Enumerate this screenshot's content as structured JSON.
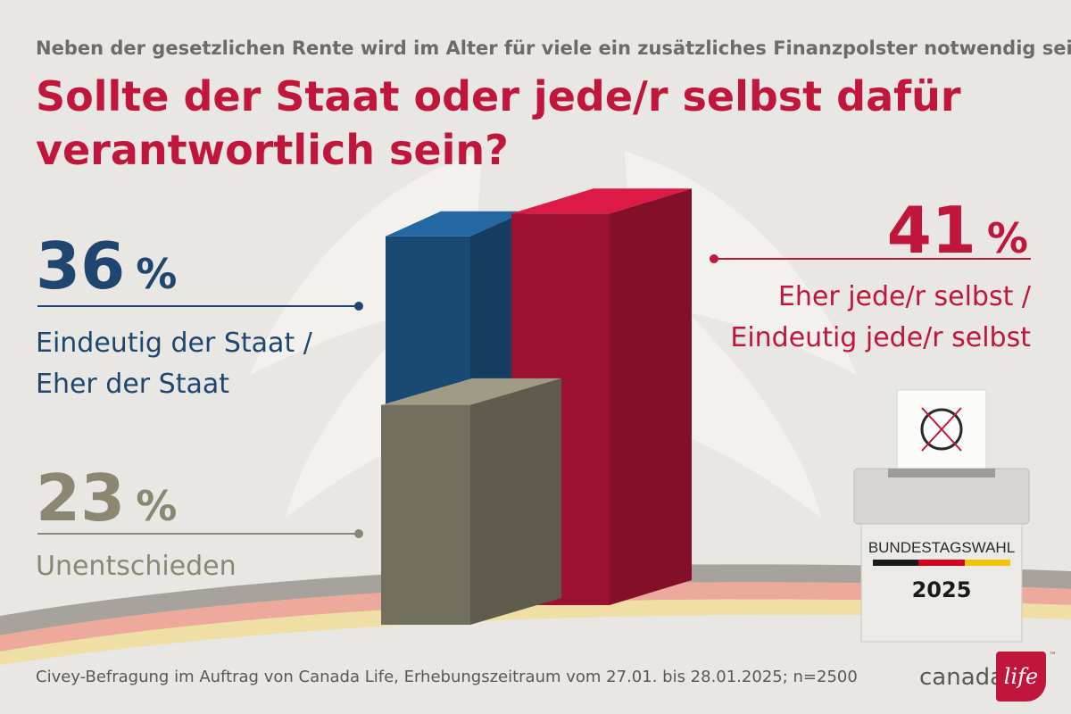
{
  "subtitle": "Neben der gesetzlichen Rente wird im Alter für viele ein zusätzliches Finanzpolster notwendig sein.",
  "question": "Sollte der Staat oder jede/r selbst dafür verantwortlich sein?",
  "chart_data": {
    "type": "bar",
    "categories": [
      "Eindeutig der Staat / Eher der Staat",
      "Unentschieden",
      "Eher jede/r selbst / Eindeutig jede/r selbst"
    ],
    "values": [
      36,
      23,
      41
    ],
    "unit": "%",
    "colors": [
      "#1e5a8e",
      "#8b8773",
      "#c0163c"
    ],
    "labels": [
      {
        "value": "36",
        "unit": "%",
        "line1": "Eindeutig der Staat /",
        "line2": "Eher der Staat"
      },
      {
        "value": "23",
        "unit": "%",
        "line1": "Unentschieden"
      },
      {
        "value": "41",
        "unit": "%",
        "line1": "Eher jede/r selbst /",
        "line2": "Eindeutig jede/r selbst"
      }
    ]
  },
  "ballot": {
    "label": "BUNDESTAGSWAHL",
    "year": "2025",
    "flag_colors": [
      "#1a1a1a",
      "#d4001f",
      "#f3c400"
    ]
  },
  "source": "Civey-Befragung im Auftrag von Canada Life, Erhebungszeitraum vom 27.01. bis 28.01.2025; n=2500",
  "logo": {
    "word1": "canada",
    "word2": "life",
    "tm": "™"
  }
}
